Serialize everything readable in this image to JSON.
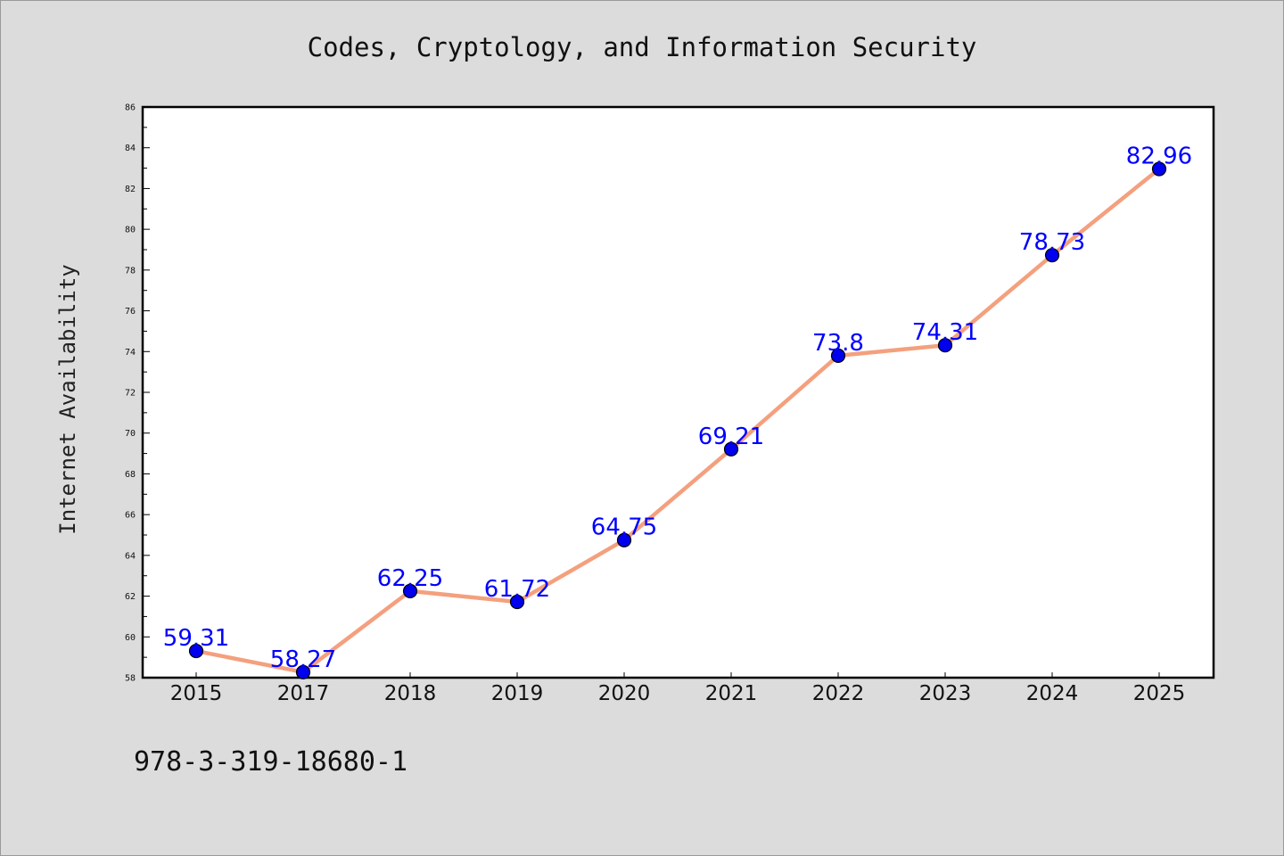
{
  "chart_data": {
    "type": "line",
    "title": "Codes, Cryptology, and Information Security",
    "xlabel": "",
    "ylabel": "Internet Availability",
    "categories": [
      "2015",
      "2017",
      "2018",
      "2019",
      "2020",
      "2021",
      "2022",
      "2023",
      "2024",
      "2025"
    ],
    "series": [
      {
        "values": [
          59.31,
          58.27,
          62.25,
          61.72,
          64.75,
          69.21,
          73.8,
          74.31,
          78.73,
          82.96
        ],
        "data_labels": [
          "59.31",
          "58.27",
          "62.25",
          "61.72",
          "64.75",
          "69.21",
          "73.8",
          "74.31",
          "78.73",
          "82.96"
        ]
      }
    ],
    "ylim": [
      58,
      86
    ],
    "yticks": [
      58,
      60,
      62,
      64,
      66,
      68,
      70,
      72,
      74,
      76,
      78,
      80,
      82,
      84,
      86
    ],
    "grid": false,
    "legend": "none",
    "colors": {
      "line": "#f4a07e",
      "marker": "#0000ee",
      "data_label": "#0000ff",
      "background": "#dcdcdc",
      "plot_background": "#ffffff"
    }
  },
  "footnote": "978-3-319-18680-1"
}
